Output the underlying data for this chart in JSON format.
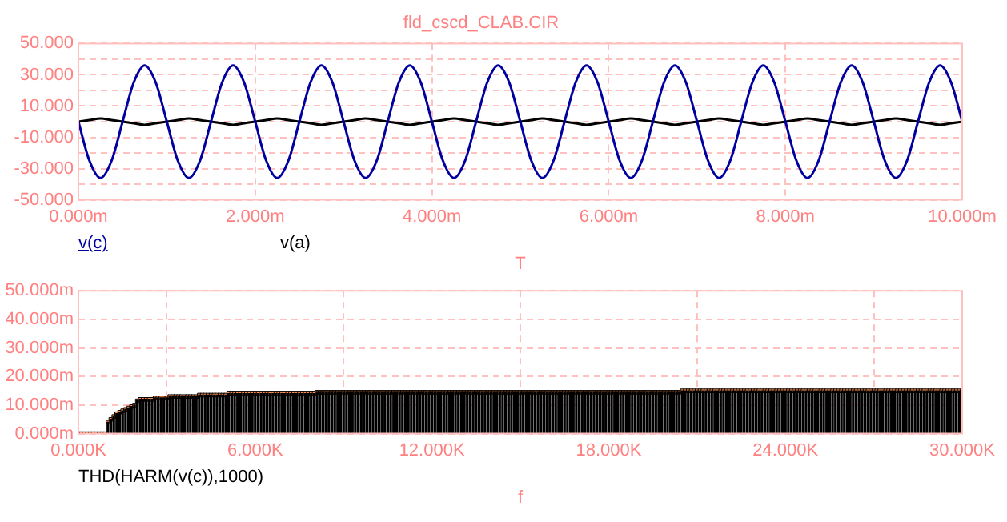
{
  "chart_data": [
    {
      "type": "line",
      "title": "fld_cscd_CLAB.CIR",
      "xlabel": "T",
      "grid": true,
      "legend": "bottom left",
      "marker": "none",
      "xlim": [
        0,
        10
      ],
      "xticks": [
        {
          "value": 0,
          "label": "0.000m"
        },
        {
          "value": 2,
          "label": "2.000m"
        },
        {
          "value": 4,
          "label": "4.000m"
        },
        {
          "value": 6,
          "label": "6.000m"
        },
        {
          "value": 8,
          "label": "8.000m"
        },
        {
          "value": 10,
          "label": "10.000m"
        }
      ],
      "ylim": [
        -50,
        50
      ],
      "yticks": [
        {
          "value": -50,
          "label": "-50.000"
        },
        {
          "value": -40,
          "label": null
        },
        {
          "value": -30,
          "label": "-30.000"
        },
        {
          "value": -20,
          "label": null
        },
        {
          "value": -10,
          "label": "-10.000"
        },
        {
          "value": 0,
          "label": null
        },
        {
          "value": 10,
          "label": "10.000"
        },
        {
          "value": 20,
          "label": null
        },
        {
          "value": 30,
          "label": "30.000"
        },
        {
          "value": 40,
          "label": null
        },
        {
          "value": 50,
          "label": "50.000"
        }
      ],
      "x": [
        0,
        0.125,
        0.25,
        0.375,
        0.5,
        0.625,
        0.75,
        0.875,
        1,
        1.125,
        1.25,
        1.375,
        1.5,
        1.625,
        1.75,
        1.875,
        2,
        2.125,
        2.25,
        2.375,
        2.5,
        2.625,
        2.75,
        2.875,
        3,
        3.125,
        3.25,
        3.375,
        3.5,
        3.625,
        3.75,
        3.875,
        4,
        4.125,
        4.25,
        4.375,
        4.5,
        4.625,
        4.75,
        4.875,
        5,
        5.125,
        5.25,
        5.375,
        5.5,
        5.625,
        5.75,
        5.875,
        6,
        6.125,
        6.25,
        6.375,
        6.5,
        6.625,
        6.75,
        6.875,
        7,
        7.125,
        7.25,
        7.375,
        7.5,
        7.625,
        7.75,
        7.875,
        8,
        8.125,
        8.25,
        8.375,
        8.5,
        8.625,
        8.75,
        8.875,
        9,
        9.125,
        9.25,
        9.375,
        9.5,
        9.625,
        9.75,
        9.875,
        10
      ],
      "series": [
        {
          "name": "v(c)",
          "color": "#0000a0",
          "values": [
            0,
            -25,
            -36,
            -25,
            0,
            25,
            36,
            25,
            0,
            -25,
            -36,
            -25,
            0,
            25,
            36,
            25,
            0,
            -25,
            -36,
            -25,
            0,
            25,
            36,
            25,
            0,
            -25,
            -36,
            -25,
            0,
            25,
            36,
            25,
            0,
            -25,
            -36,
            -25,
            0,
            25,
            36,
            25,
            0,
            -25,
            -36,
            -25,
            0,
            25,
            36,
            25,
            0,
            -25,
            -36,
            -25,
            0,
            25,
            36,
            25,
            0,
            -25,
            -36,
            -25,
            0,
            25,
            36,
            25,
            0,
            -25,
            -36,
            -25,
            0,
            25,
            36,
            25,
            0,
            -25,
            -36,
            -25,
            0,
            25,
            36,
            25,
            0
          ]
        },
        {
          "name": "v(a)",
          "color": "#000000",
          "values": [
            0,
            1,
            2,
            1,
            0,
            -1,
            -2,
            -1,
            0,
            1,
            2,
            1,
            0,
            -1,
            -2,
            -1,
            0,
            1,
            2,
            1,
            0,
            -1,
            -2,
            -1,
            0,
            1,
            2,
            1,
            0,
            -1,
            -2,
            -1,
            0,
            1,
            2,
            1,
            0,
            -1,
            -2,
            -1,
            0,
            1,
            2,
            1,
            0,
            -1,
            -2,
            -1,
            0,
            1,
            2,
            1,
            0,
            -1,
            -2,
            -1,
            0,
            1,
            2,
            1,
            0,
            -1,
            -2,
            -1,
            0,
            1,
            2,
            1,
            0,
            -1,
            -2,
            -1,
            0,
            1,
            2,
            1,
            0,
            -1,
            -2,
            -1,
            0
          ]
        }
      ]
    },
    {
      "type": "lollipop",
      "xlabel": "f",
      "grid": true,
      "legend": "bottom left",
      "marker": "square",
      "xlim": [
        0,
        30000
      ],
      "xticks": [
        {
          "value": 0,
          "label": "0.000K"
        },
        {
          "value": 6000,
          "label": "6.000K"
        },
        {
          "value": 12000,
          "label": "12.000K"
        },
        {
          "value": 18000,
          "label": "18.000K"
        },
        {
          "value": 24000,
          "label": "24.000K"
        },
        {
          "value": 30000,
          "label": "30.000K"
        }
      ],
      "ylim": [
        0,
        50
      ],
      "yticks": [
        {
          "value": 0,
          "label": "0.000m"
        },
        {
          "value": 10,
          "label": "10.000m"
        },
        {
          "value": 20,
          "label": "20.000m"
        },
        {
          "value": 30,
          "label": "30.000m"
        },
        {
          "value": 40,
          "label": "40.000m"
        },
        {
          "value": 50,
          "label": "50.000m"
        }
      ],
      "x": [
        0,
        100,
        200,
        300,
        400,
        500,
        600,
        700,
        800,
        900,
        1000,
        1100,
        1200,
        1300,
        1400,
        1500,
        1600,
        1700,
        1800,
        1900,
        2000,
        2100,
        2200,
        2300,
        2400,
        2500,
        2600,
        2700,
        2800,
        2900,
        3000,
        3100,
        3200,
        3300,
        3400,
        3500,
        3600,
        3700,
        3800,
        3900,
        4000,
        4100,
        4200,
        4300,
        4400,
        4500,
        4600,
        4700,
        4800,
        4900,
        5000,
        5100,
        5200,
        5300,
        5400,
        5500,
        5600,
        5700,
        5800,
        5900,
        6000,
        6100,
        6200,
        6300,
        6400,
        6500,
        6600,
        6700,
        6800,
        6900,
        7000,
        7100,
        7200,
        7300,
        7400,
        7500,
        7600,
        7700,
        7800,
        7900,
        8000,
        8100,
        8200,
        8300,
        8400,
        8500,
        8600,
        8700,
        8800,
        8900,
        9000,
        9100,
        9200,
        9300,
        9400,
        9500,
        9600,
        9700,
        9800,
        9900,
        10000,
        10100,
        10200,
        10300,
        10400,
        10500,
        10600,
        10700,
        10800,
        10900,
        11000,
        11100,
        11200,
        11300,
        11400,
        11500,
        11600,
        11700,
        11800,
        11900,
        12000,
        12100,
        12200,
        12300,
        12400,
        12500,
        12600,
        12700,
        12800,
        12900,
        13000,
        13100,
        13200,
        13300,
        13400,
        13500,
        13600,
        13700,
        13800,
        13900,
        14000,
        14100,
        14200,
        14300,
        14400,
        14500,
        14600,
        14700,
        14800,
        14900,
        15000,
        15100,
        15200,
        15300,
        15400,
        15500,
        15600,
        15700,
        15800,
        15900,
        16000,
        16100,
        16200,
        16300,
        16400,
        16500,
        16600,
        16700,
        16800,
        16900,
        17000,
        17100,
        17200,
        17300,
        17400,
        17500,
        17600,
        17700,
        17800,
        17900,
        18000,
        18100,
        18200,
        18300,
        18400,
        18500,
        18600,
        18700,
        18800,
        18900,
        19000,
        19100,
        19200,
        19300,
        19400,
        19500,
        19600,
        19700,
        19800,
        19900,
        20000,
        20100,
        20200,
        20300,
        20400,
        20500,
        20600,
        20700,
        20800,
        20900,
        21000,
        21100,
        21200,
        21300,
        21400,
        21500,
        21600,
        21700,
        21800,
        21900,
        22000,
        22100,
        22200,
        22300,
        22400,
        22500,
        22600,
        22700,
        22800,
        22900,
        23000,
        23100,
        23200,
        23300,
        23400,
        23500,
        23600,
        23700,
        23800,
        23900,
        24000,
        24100,
        24200,
        24300,
        24400,
        24500,
        24600,
        24700,
        24800,
        24900,
        25000,
        25100,
        25200,
        25300,
        25400,
        25500,
        25600,
        25700,
        25800,
        25900,
        26000,
        26100,
        26200,
        26300,
        26400,
        26500,
        26600,
        26700,
        26800,
        26900,
        27000,
        27100,
        27200,
        27300,
        27400,
        27500,
        27600,
        27700,
        27800,
        27900,
        28000,
        28100,
        28200,
        28300,
        28400,
        28500,
        28600,
        28700,
        28800,
        28900,
        29000,
        29100,
        29200,
        29300,
        29400,
        29500,
        29600,
        29700,
        29800,
        29900,
        30000
      ],
      "series": [
        {
          "name": "THD(HARM(v(c)),1000)",
          "color": "#000000",
          "values": [
            0,
            0,
            0,
            0,
            0,
            0,
            0,
            0,
            0,
            0,
            4,
            5,
            6,
            7,
            7.5,
            8,
            8.5,
            9,
            9.5,
            10,
            11.5,
            12,
            12,
            12,
            12,
            12,
            12.5,
            12.5,
            12.5,
            12.5,
            12.5,
            13,
            13,
            13,
            13,
            13,
            13,
            13,
            13,
            13,
            13,
            13.5,
            13.5,
            13.5,
            13.5,
            13.5,
            13.5,
            13.5,
            13.5,
            13.5,
            13.5,
            14,
            14,
            14,
            14,
            14,
            14,
            14,
            14,
            14,
            14,
            14,
            14,
            14,
            14,
            14,
            14,
            14,
            14,
            14,
            14,
            14,
            14,
            14,
            14,
            14,
            14,
            14,
            14,
            14,
            14,
            14.5,
            14.5,
            14.5,
            14.5,
            14.5,
            14.5,
            14.5,
            14.5,
            14.5,
            14.5,
            14.5,
            14.5,
            14.5,
            14.5,
            14.5,
            14.5,
            14.5,
            14.5,
            14.5,
            14.5,
            14.5,
            14.5,
            14.5,
            14.5,
            14.5,
            14.5,
            14.5,
            14.5,
            14.5,
            14.5,
            14.5,
            14.5,
            14.5,
            14.5,
            14.5,
            14.5,
            14.5,
            14.5,
            14.5,
            14.5,
            14.5,
            14.5,
            14.5,
            14.5,
            14.5,
            14.5,
            14.5,
            14.5,
            14.5,
            14.5,
            14.5,
            14.5,
            14.5,
            14.5,
            14.5,
            14.5,
            14.5,
            14.5,
            14.5,
            14.5,
            14.5,
            14.5,
            14.5,
            14.5,
            14.5,
            14.5,
            14.5,
            14.5,
            14.5,
            14.5,
            14.5,
            14.5,
            14.5,
            14.5,
            14.5,
            14.5,
            14.5,
            14.5,
            14.5,
            14.5,
            14.5,
            14.5,
            14.5,
            14.5,
            14.5,
            14.5,
            14.5,
            14.5,
            14.5,
            14.5,
            14.5,
            14.5,
            14.5,
            14.5,
            14.5,
            14.5,
            14.5,
            14.5,
            14.5,
            14.5,
            14.5,
            14.5,
            14.5,
            14.5,
            14.5,
            14.5,
            14.5,
            14.5,
            14.5,
            14.5,
            14.5,
            14.5,
            14.5,
            14.5,
            14.5,
            14.5,
            14.5,
            14.5,
            14.5,
            14.5,
            14.5,
            14.5,
            14.5,
            14.5,
            15,
            15,
            15,
            15,
            15,
            15,
            15,
            15,
            15,
            15,
            15,
            15,
            15,
            15,
            15,
            15,
            15,
            15,
            15,
            15,
            15,
            15,
            15,
            15,
            15,
            15,
            15,
            15,
            15,
            15,
            15,
            15,
            15,
            15,
            15,
            15,
            15,
            15,
            15,
            15,
            15,
            15,
            15,
            15,
            15,
            15,
            15,
            15,
            15,
            15,
            15,
            15,
            15,
            15,
            15,
            15,
            15,
            15,
            15,
            15,
            15,
            15,
            15,
            15,
            15,
            15,
            15,
            15,
            15,
            15,
            15,
            15,
            15,
            15,
            15,
            15,
            15,
            15,
            15,
            15,
            15,
            15,
            15,
            15,
            15,
            15,
            15,
            15,
            15,
            15,
            15,
            15,
            15,
            15,
            15,
            15
          ]
        }
      ]
    }
  ]
}
